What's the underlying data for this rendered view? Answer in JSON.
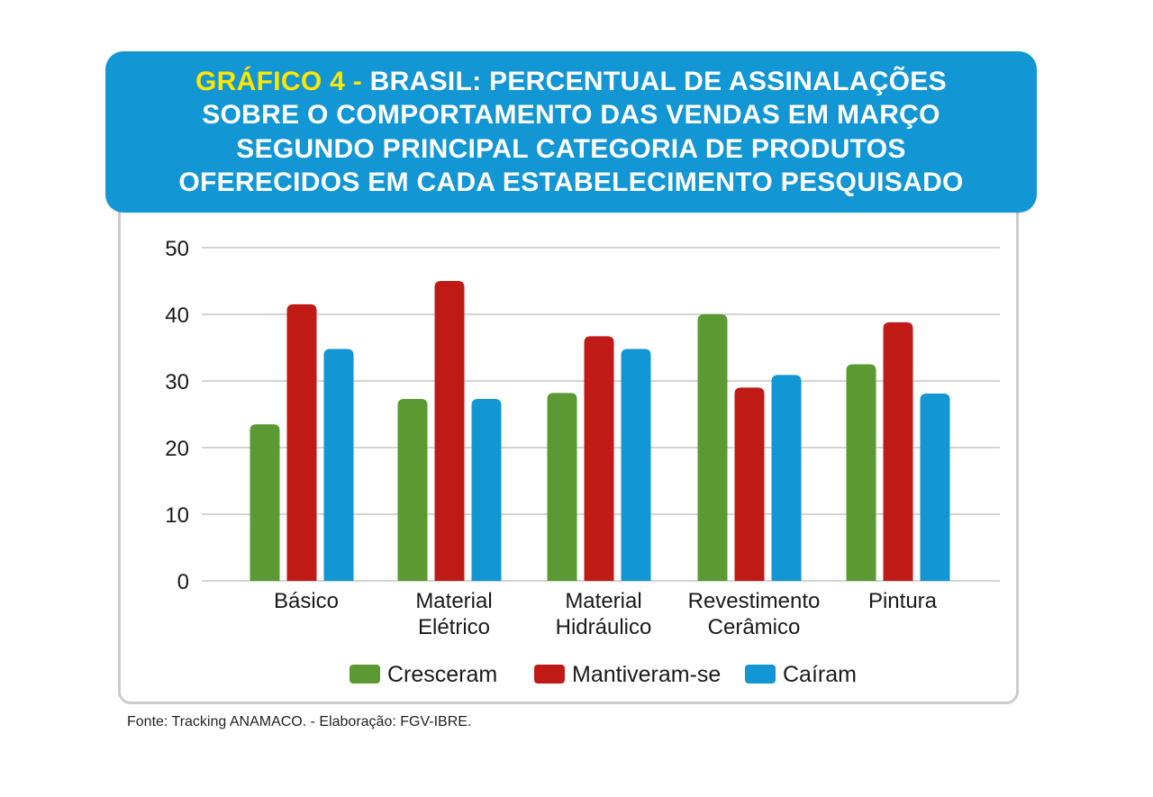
{
  "title": {
    "prefix": "GRÁFICO 4 -",
    "lines": [
      "BRASIL: PERCENTUAL DE ASSINALAÇÕES",
      "SOBRE O COMPORTAMENTO DAS VENDAS EM MARÇO",
      "SEGUNDO PRINCIPAL CATEGORIA DE PRODUTOS",
      "OFERECIDOS EM CADA ESTABELECIMENTO PESQUISADO"
    ]
  },
  "source": "Fonte: Tracking ANAMACO. - Elaboração: FGV-IBRE.",
  "colors": {
    "banner": "#1296d4",
    "prefix": "#ffe600",
    "frame": "#c9cbcd",
    "grid": "#c6c6c6"
  },
  "chart_data": {
    "type": "bar",
    "title": "GRÁFICO 4 - BRASIL: PERCENTUAL DE ASSINALAÇÕES SOBRE O COMPORTAMENTO DAS VENDAS EM MARÇO SEGUNDO PRINCIPAL CATEGORIA DE PRODUTOS OFERECIDOS EM CADA ESTABELECIMENTO PESQUISADO",
    "xlabel": "",
    "ylabel": "",
    "ylim": [
      0,
      50
    ],
    "yticks": [
      0,
      10,
      20,
      30,
      40,
      50
    ],
    "grid": true,
    "legend_position": "bottom",
    "categories": [
      [
        "Básico"
      ],
      [
        "Material",
        "Elétrico"
      ],
      [
        "Material",
        "Hidráulico"
      ],
      [
        "Revestimento",
        "Cerâmico"
      ],
      [
        "Pintura"
      ]
    ],
    "series": [
      {
        "name": "Cresceram",
        "color": "#5b9a32",
        "values": [
          23.5,
          27.3,
          28.2,
          40.0,
          32.5
        ]
      },
      {
        "name": "Mantiveram-se",
        "color": "#c01a16",
        "values": [
          41.5,
          45.0,
          36.7,
          29.0,
          38.8
        ]
      },
      {
        "name": "Caíram",
        "color": "#1296d4",
        "values": [
          34.8,
          27.3,
          34.8,
          30.9,
          28.1
        ]
      }
    ]
  }
}
